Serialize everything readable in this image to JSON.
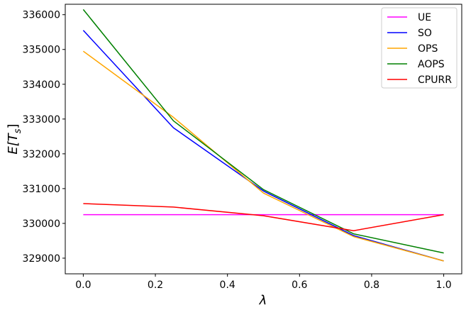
{
  "chart_data": {
    "type": "line",
    "title": "",
    "xlabel": "λ",
    "ylabel_base": "E[T",
    "ylabel_sub": "s",
    "ylabel_close": "]",
    "xlim": [
      -0.05,
      1.05
    ],
    "ylim": [
      328550,
      336300
    ],
    "x_ticks": [
      0.0,
      0.2,
      0.4,
      0.6,
      0.8,
      1.0
    ],
    "x_tick_labels": [
      "0.0",
      "0.2",
      "0.4",
      "0.6",
      "0.8",
      "1.0"
    ],
    "y_ticks": [
      329000,
      330000,
      331000,
      332000,
      333000,
      334000,
      335000,
      336000
    ],
    "y_tick_labels": [
      "329000",
      "330000",
      "331000",
      "332000",
      "333000",
      "334000",
      "335000",
      "336000"
    ],
    "grid": false,
    "legend_position": "top-right",
    "x": [
      0.0,
      0.25,
      0.5,
      0.75,
      1.0
    ],
    "series": [
      {
        "name": "UE",
        "color": "#ff00ff",
        "values": [
          330250,
          330250,
          330250,
          330250,
          330250
        ]
      },
      {
        "name": "SO",
        "color": "#0000ff",
        "values": [
          335550,
          332750,
          330930,
          329650,
          328920
        ]
      },
      {
        "name": "OPS",
        "color": "#ffa500",
        "values": [
          334950,
          333050,
          330870,
          329620,
          328920
        ]
      },
      {
        "name": "AOPS",
        "color": "#008000",
        "values": [
          336150,
          332950,
          330970,
          329700,
          329150
        ]
      },
      {
        "name": "CPURR",
        "color": "#ff0000",
        "values": [
          330570,
          330470,
          330220,
          329790,
          330250
        ]
      }
    ]
  }
}
